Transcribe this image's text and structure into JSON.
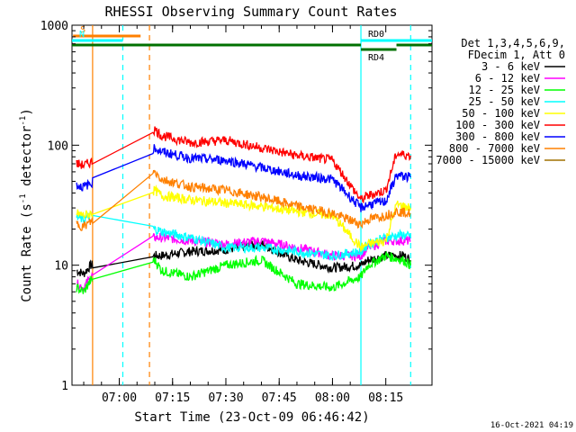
{
  "chart_data": {
    "type": "line",
    "title": "RHESSI Observing Summary Count Rates",
    "xlabel": "Start Time (23-Oct-09 06:46:42)",
    "ylabel_main": "Count Rate (s",
    "ylabel_sup1": "-1",
    "ylabel_mid": " detector",
    "ylabel_sup2": "-1",
    "ylabel_end": ")",
    "y_scale": "log",
    "ylim": [
      1,
      1000
    ],
    "xlim": [
      "06:46:42",
      "08:28:00"
    ],
    "x_ticks": [
      {
        "t": "07:00"
      },
      {
        "t": "07:15"
      },
      {
        "t": "07:30"
      },
      {
        "t": "07:45"
      },
      {
        "t": "08:00"
      },
      {
        "t": "08:15"
      }
    ],
    "y_ticks": [
      {
        "v": 1,
        "label": "1"
      },
      {
        "v": 10,
        "label": "10"
      },
      {
        "v": 100,
        "label": "100"
      },
      {
        "v": 1000,
        "label": "1000"
      }
    ],
    "legend_header": [
      "Det 1,3,4,5,6,9,",
      "FDecim 1, Att 0"
    ],
    "legend_position": "right",
    "series": [
      {
        "name": "3 - 6 keV",
        "color": "#000000",
        "x": [
          "06:48",
          "06:50",
          "06:52",
          "07:10",
          "07:12",
          "07:20",
          "07:30",
          "07:40",
          "07:50",
          "08:00",
          "08:08",
          "08:10",
          "08:15",
          "08:20",
          "08:22"
        ],
        "y": [
          9,
          8.5,
          10,
          12,
          12,
          13,
          13.5,
          15,
          11,
          9.5,
          10,
          11,
          12,
          12,
          11
        ]
      },
      {
        "name": "6 - 12 keV",
        "color": "#ff00ff",
        "x": [
          "06:48",
          "06:50",
          "06:52",
          "07:10",
          "07:12",
          "07:20",
          "07:30",
          "07:40",
          "07:50",
          "08:00",
          "08:08",
          "08:10",
          "08:15",
          "08:20",
          "08:22"
        ],
        "y": [
          7,
          6.5,
          8,
          17,
          17,
          16,
          15,
          16,
          14,
          12,
          12,
          14,
          16,
          16,
          16
        ]
      },
      {
        "name": "12 - 25 keV",
        "color": "#00ff00",
        "x": [
          "06:48",
          "06:50",
          "06:52",
          "07:10",
          "07:12",
          "07:20",
          "07:30",
          "07:40",
          "07:50",
          "08:00",
          "08:08",
          "08:10",
          "08:15",
          "08:20",
          "08:22"
        ],
        "y": [
          6.5,
          6,
          7.5,
          11,
          9,
          8,
          10,
          11,
          7,
          6.5,
          8,
          10,
          12,
          11,
          10
        ]
      },
      {
        "name": "25 - 50 keV",
        "color": "#00ffff",
        "x": [
          "06:48",
          "06:50",
          "06:52",
          "07:10",
          "07:12",
          "07:20",
          "07:30",
          "07:40",
          "07:50",
          "08:00",
          "08:08",
          "08:10",
          "08:15",
          "08:20",
          "08:22"
        ],
        "y": [
          25,
          24,
          26,
          20,
          19,
          17,
          14,
          14,
          13,
          12,
          13,
          15,
          17,
          18,
          17
        ]
      },
      {
        "name": "50 - 100 keV",
        "color": "#ffff00",
        "x": [
          "06:48",
          "06:50",
          "06:52",
          "07:10",
          "07:12",
          "07:20",
          "07:30",
          "07:40",
          "07:50",
          "08:00",
          "08:08",
          "08:10",
          "08:15",
          "08:18",
          "08:22"
        ],
        "y": [
          27,
          26,
          27,
          42,
          38,
          35,
          33,
          31,
          28,
          26,
          14,
          15,
          16,
          32,
          30
        ]
      },
      {
        "name": "100 - 300 keV",
        "color": "#ff0000",
        "x": [
          "06:48",
          "06:50",
          "06:52",
          "07:10",
          "07:12",
          "07:20",
          "07:30",
          "07:40",
          "07:50",
          "08:00",
          "08:08",
          "08:10",
          "08:15",
          "08:18",
          "08:22"
        ],
        "y": [
          70,
          68,
          72,
          135,
          120,
          105,
          110,
          95,
          82,
          75,
          35,
          38,
          42,
          85,
          82
        ]
      },
      {
        "name": "300 - 800 keV",
        "color": "#0000ff",
        "x": [
          "06:48",
          "06:50",
          "06:52",
          "07:10",
          "07:12",
          "07:20",
          "07:30",
          "07:40",
          "07:50",
          "08:00",
          "08:08",
          "08:10",
          "08:15",
          "08:18",
          "08:22"
        ],
        "y": [
          46,
          45,
          48,
          95,
          88,
          78,
          75,
          65,
          56,
          52,
          30,
          32,
          34,
          56,
          54
        ]
      },
      {
        "name": "800 - 7000 keV",
        "color": "#ff8000",
        "x": [
          "06:48",
          "06:50",
          "06:52",
          "07:10",
          "07:12",
          "07:20",
          "07:30",
          "07:40",
          "07:50",
          "08:00",
          "08:08",
          "08:10",
          "08:15",
          "08:18",
          "08:22"
        ],
        "y": [
          22,
          21,
          23,
          60,
          52,
          45,
          42,
          37,
          31,
          27,
          22,
          24,
          26,
          28,
          27
        ]
      },
      {
        "name": "7000 - 15000 keV",
        "color": "#a07000",
        "x": [],
        "y": []
      }
    ],
    "flags": [
      {
        "label": "S",
        "color": "#ff8000",
        "x0": "06:47",
        "x1": "07:06",
        "level": 9
      },
      {
        "label": "N",
        "color": "#00ffff",
        "x0": "06:46:42",
        "x1": "07:01",
        "level": 8
      },
      {
        "label": "",
        "color": "#007000",
        "x0": "06:46:42",
        "x1": "08:08",
        "level": 7
      },
      {
        "label": "RD0",
        "color": "#00ffff",
        "x0": "08:08",
        "x1": "08:28",
        "level": 8
      },
      {
        "label": "RD4",
        "color": "#007000",
        "x0": "08:08",
        "x1": "08:18",
        "level": 6
      },
      {
        "label": "",
        "color": "#007000",
        "x0": "08:18",
        "x1": "08:28",
        "level": 7
      }
    ],
    "vlines": [
      {
        "t": "06:52:30",
        "color": "#ff8000",
        "style": "solid"
      },
      {
        "t": "07:01:00",
        "color": "#00ffff",
        "style": "dashed"
      },
      {
        "t": "07:08:30",
        "color": "#ff8000",
        "style": "dashed"
      },
      {
        "t": "08:08:00",
        "color": "#00ffff",
        "style": "solid"
      },
      {
        "t": "08:22:00",
        "color": "#00ffff",
        "style": "dashed"
      }
    ],
    "footer_stamp": "16-Oct-2021 04:19"
  }
}
